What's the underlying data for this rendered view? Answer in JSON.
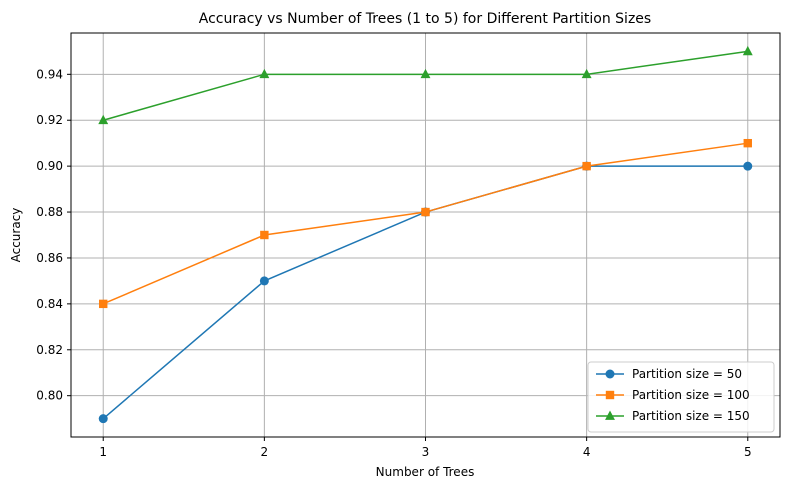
{
  "chart_data": {
    "type": "line",
    "title": "Accuracy vs Number of Trees (1 to 5) for Different Partition Sizes",
    "xlabel": "Number of Trees",
    "ylabel": "Accuracy",
    "x": [
      1,
      2,
      3,
      4,
      5
    ],
    "x_ticks": [
      "1",
      "2",
      "3",
      "4",
      "5"
    ],
    "y_ticks": [
      "0.80",
      "0.82",
      "0.84",
      "0.86",
      "0.88",
      "0.90",
      "0.92",
      "0.94"
    ],
    "y_tick_values": [
      0.8,
      0.82,
      0.84,
      0.86,
      0.88,
      0.9,
      0.92,
      0.94
    ],
    "xlim": [
      0.8,
      5.2
    ],
    "ylim": [
      0.782,
      0.958
    ],
    "grid": true,
    "legend_position": "lower-right",
    "series": [
      {
        "name": "Partition size = 50",
        "values": [
          0.79,
          0.85,
          0.88,
          0.9,
          0.9
        ],
        "color": "#1f77b4",
        "marker": "circle"
      },
      {
        "name": "Partition size = 100",
        "values": [
          0.84,
          0.87,
          0.88,
          0.9,
          0.91
        ],
        "color": "#ff7f0e",
        "marker": "square"
      },
      {
        "name": "Partition size = 150",
        "values": [
          0.92,
          0.94,
          0.94,
          0.94,
          0.95
        ],
        "color": "#2ca02c",
        "marker": "triangle"
      }
    ]
  }
}
